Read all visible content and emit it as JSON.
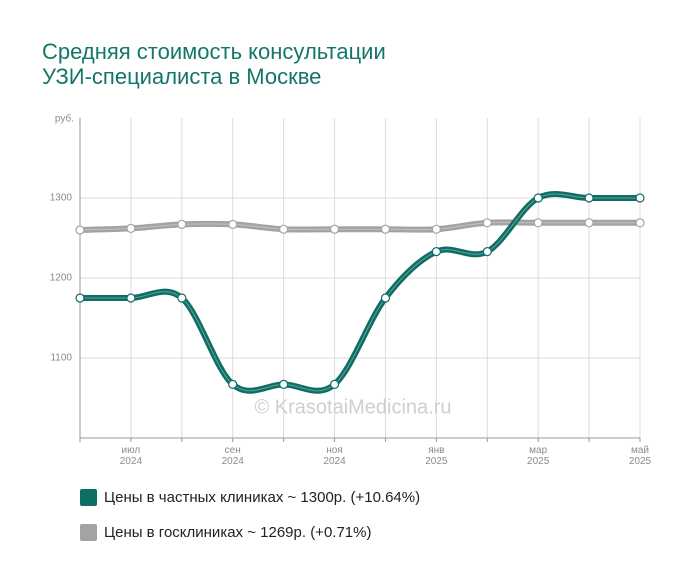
{
  "chart_data": {
    "type": "line",
    "title": [
      "Средняя стоимость консультации",
      "УЗИ-специалиста в Москве"
    ],
    "y_unit": "руб.",
    "watermark": "© KrasotaiMedicina.ru",
    "categories": [
      null,
      [
        "июл",
        "2024"
      ],
      null,
      [
        "сен",
        "2024"
      ],
      null,
      [
        "ноя",
        "2024"
      ],
      null,
      [
        "янв",
        "2025"
      ],
      null,
      [
        "мар",
        "2025"
      ],
      null,
      [
        "май",
        "2025"
      ]
    ],
    "series": [
      {
        "name": "Цены в частных клиниках ~ 1300р. (+10.64%)",
        "color": "#0f6e64",
        "values": [
          1175,
          1175,
          1175,
          1067,
          1067,
          1067,
          1175,
          1233,
          1233,
          1300,
          1300,
          1300
        ]
      },
      {
        "name": "Цены в госклиниках ~ 1269р. (+0.71%)",
        "color": "#a3a3a3",
        "values": [
          1260,
          1262,
          1267,
          1267,
          1261,
          1261,
          1261,
          1261,
          1269,
          1269,
          1269,
          1269
        ]
      }
    ],
    "ylim": [
      1000,
      1400
    ],
    "yticks": [
      1100,
      1200,
      1300
    ],
    "grid": true
  }
}
